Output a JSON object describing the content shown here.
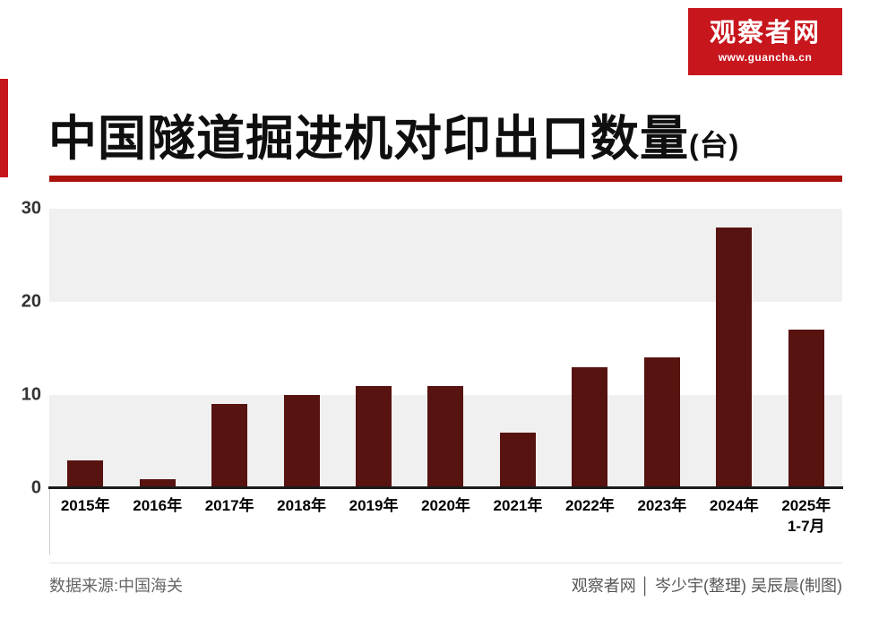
{
  "logo": {
    "title": "观察者网",
    "url": "www.guancha.cn"
  },
  "header": {
    "title": "中国隧道掘进机对印出口数量",
    "title_unit": "(台)"
  },
  "footer": {
    "source": "数据来源:中国海关",
    "credits": "观察者网 │ 岑少宇(整理)  吴辰晨(制图)"
  },
  "colors": {
    "accent_red": "#c8161d",
    "title_rule_red": "#a8130e",
    "bar_maroon": "#571310",
    "band_gray": "#f0f0f0"
  },
  "chart_data": {
    "type": "bar",
    "title": "中国隧道掘进机对印出口数量(台)",
    "categories": [
      "2015年",
      "2016年",
      "2017年",
      "2018年",
      "2019年",
      "2020年",
      "2021年",
      "2022年",
      "2023年",
      "2024年",
      "2025年\n1-7月"
    ],
    "values": [
      3,
      1,
      9,
      10,
      11,
      11,
      6,
      13,
      14,
      28,
      17
    ],
    "xlabel": "",
    "ylabel": "",
    "ylim": [
      0,
      30
    ],
    "yticks": [
      0,
      10,
      20,
      30
    ],
    "grid": "alternating horizontal gray bands between y gridlines",
    "legend": "none",
    "bar_color": "#571310"
  }
}
